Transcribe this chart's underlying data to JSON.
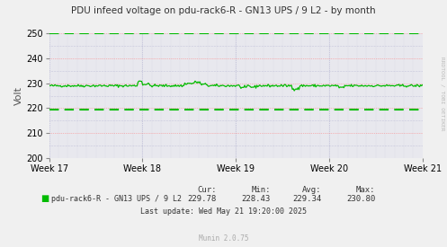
{
  "title": "PDU infeed voltage on pdu-rack6-R - GN13 UPS / 9 L2 - by month",
  "ylabel": "Volt",
  "ylim": [
    200,
    250
  ],
  "yticks": [
    200,
    210,
    220,
    230,
    240,
    250
  ],
  "x_labels": [
    "Week 17",
    "Week 18",
    "Week 19",
    "Week 20",
    "Week 21"
  ],
  "line_color": "#00bb00",
  "dashed_line_250": 250,
  "dashed_line_220": 219.5,
  "dashed_green_color": "#00bb00",
  "red_dotted_color": "#ff8080",
  "blue_dotted_color": "#aaaacc",
  "bg_color": "#f0f0f0",
  "plot_bg_color": "#e8e8ee",
  "legend_label": "pdu-rack6-R - GN13 UPS / 9 L2",
  "cur_val": "229.78",
  "min_val": "228.43",
  "avg_val": "229.34",
  "max_val": "230.80",
  "last_update": "Last update: Wed May 21 19:20:00 2025",
  "munin_version": "Munin 2.0.75",
  "watermark": "RRDTOOL / TOBI OETIKER",
  "line_mean": 229.0,
  "num_points": 400
}
